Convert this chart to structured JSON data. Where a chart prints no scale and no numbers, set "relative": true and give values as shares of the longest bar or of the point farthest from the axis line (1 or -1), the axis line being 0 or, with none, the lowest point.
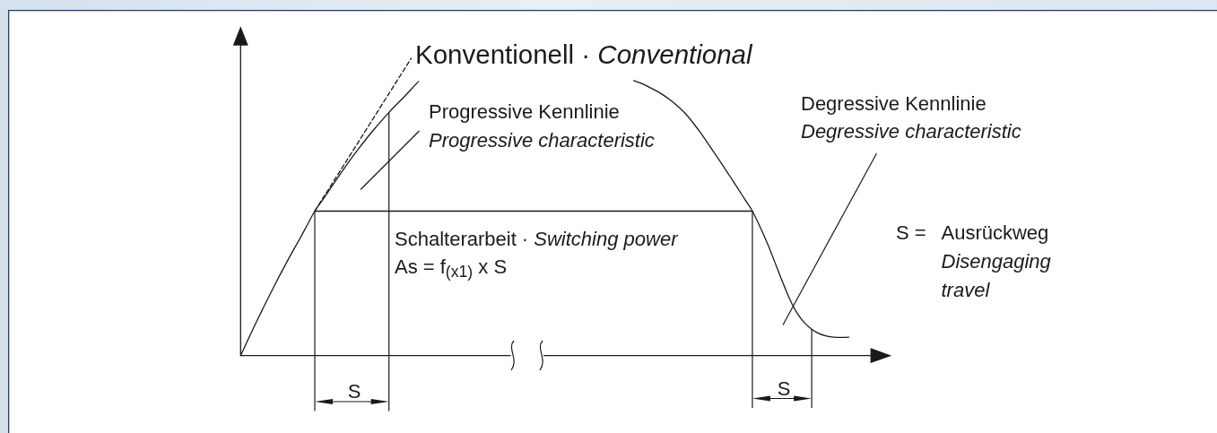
{
  "chart_data": {
    "type": "line",
    "relative": true,
    "categories": [
      null,
      null,
      null,
      null,
      null,
      null,
      null,
      null,
      null,
      null,
      null,
      null,
      null,
      null,
      null,
      null,
      null,
      null,
      null,
      null,
      null,
      null,
      null,
      null,
      null,
      null,
      null,
      null,
      null,
      null,
      null,
      null,
      null,
      null,
      null,
      null,
      null,
      null,
      null,
      null,
      null,
      null,
      null,
      null,
      null,
      null,
      null,
      null,
      null,
      null,
      null,
      null,
      null,
      null,
      null,
      null,
      null,
      null,
      null,
      null,
      null,
      null,
      null,
      null,
      null,
      null,
      null,
      null,
      null,
      null,
      null,
      null,
      null,
      null,
      null,
      null,
      null,
      null,
      null,
      null,
      null,
      null,
      null,
      null,
      null,
      null
    ],
    "series": [
      {
        "color": "#1a1a1a",
        "values": [
          0,
          0.054,
          0.107,
          0.158,
          0.208,
          0.257,
          0.304,
          0.35,
          0.394,
          0.44,
          0.486,
          0.522,
          0.558,
          0.595,
          0.631,
          0.666,
          0.699,
          0.731,
          0.761,
          0.79,
          0.818,
          0.844,
          0.869,
          0.896,
          0.922,
          null,
          null,
          null,
          null,
          null,
          null,
          null,
          null,
          null,
          null,
          null,
          null,
          null,
          null,
          null,
          null,
          null,
          null,
          null,
          null,
          null,
          null,
          null,
          null,
          null,
          null,
          null,
          null,
          null,
          null,
          null,
          null,
          null,
          null,
          null,
          null,
          null,
          null,
          null,
          null,
          null,
          null,
          null,
          null,
          null,
          null,
          null,
          null,
          null,
          null,
          null,
          null,
          null,
          null,
          null,
          null,
          null,
          null,
          null,
          null,
          null
        ]
      },
      {
        "color": "#1a1a1a",
        "line_style": "dashed",
        "values": [
          null,
          null,
          null,
          null,
          null,
          null,
          null,
          null,
          null,
          null,
          0.486,
          0.526,
          0.565,
          0.605,
          0.644,
          0.684,
          0.723,
          0.763,
          0.802,
          0.842,
          0.881,
          0.921,
          0.96,
          1,
          null,
          null,
          null,
          null,
          null,
          null,
          null,
          null,
          null,
          null,
          null,
          null,
          null,
          null,
          null,
          null,
          null,
          null,
          null,
          null,
          null,
          null,
          null,
          null,
          null,
          null,
          null,
          null,
          null,
          null,
          null,
          null,
          null,
          null,
          null,
          null,
          null,
          null,
          null,
          null,
          null,
          null,
          null,
          null,
          null,
          null,
          null,
          null,
          null,
          null,
          null,
          null,
          null,
          null,
          null,
          null,
          null,
          null,
          null,
          null,
          null,
          null
        ]
      },
      {
        "color": "#1a1a1a",
        "values": [
          null,
          null,
          null,
          null,
          null,
          null,
          null,
          null,
          null,
          null,
          null,
          null,
          null,
          null,
          null,
          null,
          null,
          null,
          null,
          null,
          null,
          null,
          null,
          null,
          null,
          null,
          null,
          null,
          null,
          null,
          null,
          null,
          null,
          null,
          null,
          null,
          null,
          null,
          null,
          null,
          null,
          null,
          null,
          null,
          null,
          null,
          null,
          null,
          null,
          null,
          null,
          null,
          null,
          0.925,
          0.916,
          0.904,
          0.891,
          0.876,
          0.858,
          0.837,
          0.813,
          0.783,
          0.75,
          0.714,
          0.677,
          0.64,
          0.602,
          0.564,
          0.525,
          0.486,
          0.435,
          0.379,
          0.316,
          0.252,
          0.192,
          0.144,
          0.111,
          0.089,
          0.074,
          0.066,
          0.062,
          0.061,
          0.062,
          null,
          null,
          null
        ]
      },
      {
        "color": "#1a1a1a",
        "values": [
          null,
          null,
          null,
          null,
          null,
          null,
          null,
          null,
          null,
          null,
          0.486,
          0.486,
          0.486,
          0.486,
          0.486,
          0.486,
          0.486,
          0.486,
          0.486,
          0.486,
          0.486,
          0.486,
          0.486,
          0.486,
          0.486,
          0.486,
          0.486,
          0.486,
          0.486,
          0.486,
          0.486,
          0.486,
          0.486,
          0.486,
          0.486,
          0.486,
          0.486,
          0.486,
          0.486,
          0.486,
          0.486,
          0.486,
          0.486,
          0.486,
          0.486,
          0.486,
          0.486,
          0.486,
          0.486,
          0.486,
          0.486,
          0.486,
          0.486,
          0.486,
          0.486,
          0.486,
          0.486,
          0.486,
          0.486,
          0.486,
          0.486,
          0.486,
          0.486,
          0.486,
          0.486,
          0.486,
          0.486,
          0.486,
          0.486,
          0.486,
          null,
          null,
          null,
          null,
          null,
          null,
          null,
          null,
          null,
          null,
          null,
          null,
          null,
          null,
          null,
          null
        ]
      }
    ],
    "annotations": [
      "Konventionell · Conventional",
      "Progressive Kennlinie",
      "Progressive characteristic",
      "Degressive Kennlinie",
      "Degressive characteristic",
      "Schalterarbeit · Switching power",
      "As = f$_{(x1)}$ x S",
      "S = Ausrückweg",
      "Disengaging travel",
      "S",
      "S"
    ]
  }
}
